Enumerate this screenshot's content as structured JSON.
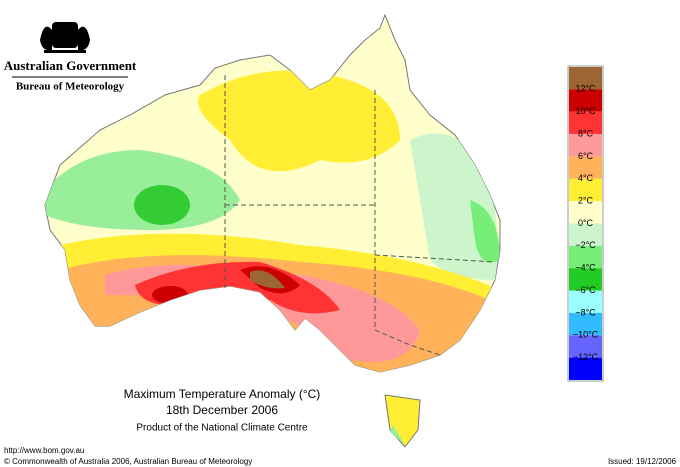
{
  "header": {
    "government": "Australian Government",
    "bureau": "Bureau of Meteorology"
  },
  "map": {
    "title": "Maximum Temperature Anomaly (°C)",
    "date": "18th December 2006",
    "credit": "Product of the National Climate Centre"
  },
  "legend": {
    "colors": [
      "#9c6634",
      "#cc0000",
      "#ff3333",
      "#ff9999",
      "#ffb25a",
      "#ffee33",
      "#ffffcc",
      "#ccf5cc",
      "#77ee77",
      "#22cc22",
      "#99ffff",
      "#33bbff",
      "#6666ff",
      "#0000ff"
    ],
    "labels": [
      "12°C",
      "10°C",
      "8°C",
      "6°C",
      "4°C",
      "2°C",
      "0°C",
      "−2°C",
      "−4°C",
      "−6°C",
      "−8°C",
      "−10°C",
      "−12°C"
    ]
  },
  "footer": {
    "url": "http://www.bom.gov.au",
    "copyright": "© Commonwealth of Australia 2006, Australian Bureau of Meteorology",
    "issued": "Issued: 19/12/2006"
  }
}
